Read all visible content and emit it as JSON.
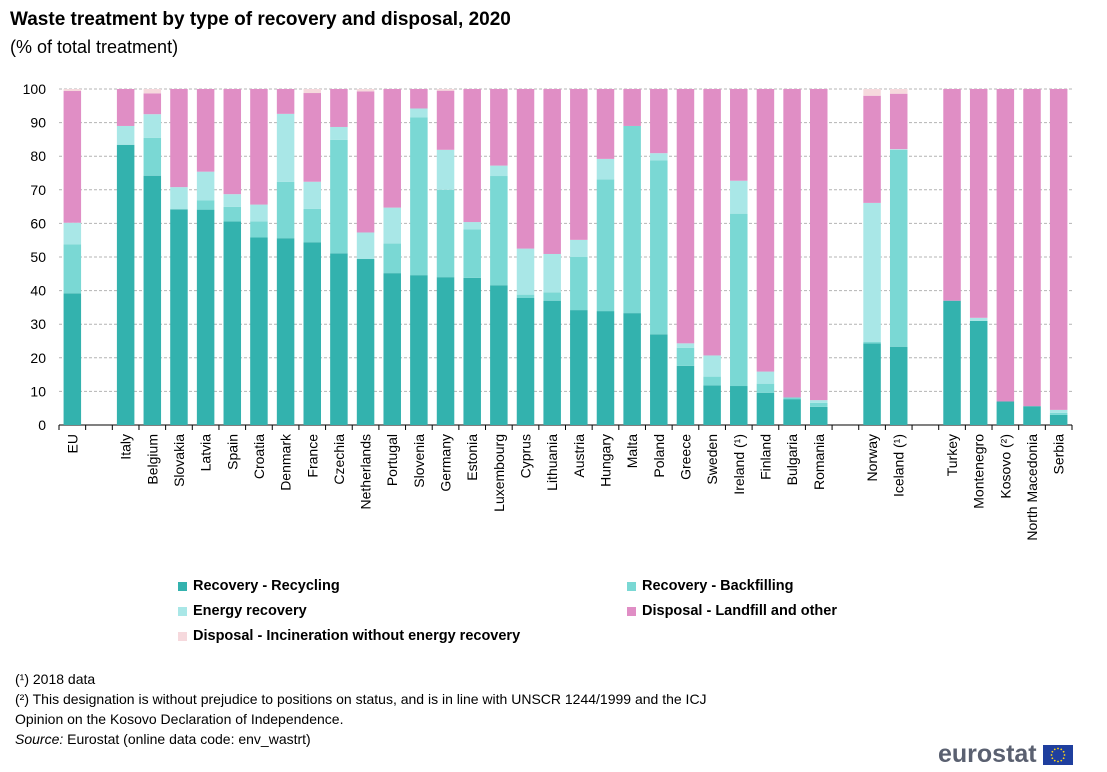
{
  "title": "Waste treatment by type of recovery and disposal, 2020",
  "subtitle": "(% of total treatment)",
  "legend": [
    {
      "label": "Recovery - Recycling",
      "color": "#33b2ae"
    },
    {
      "label": "Recovery - Backfilling",
      "color": "#7ad8d4"
    },
    {
      "label": "Energy recovery",
      "color": "#a9e7e7"
    },
    {
      "label": "Disposal - Landfill and other",
      "color": "#e08ec5"
    },
    {
      "label": "Disposal - Incineration without energy recovery",
      "color": "#f6d9dd"
    }
  ],
  "notes": {
    "note1": "(¹) 2018 data",
    "note2": "(²) This designation is without  prejudice to positions on status, and is in line with UNSCR 1244/1999 and the ICJ",
    "note3": "Opinion on the Kosovo Declaration of Independence.",
    "source_label": "Source:",
    "source_text": " Eurostat (online data code: env_wastrt)"
  },
  "logo": {
    "text": "eurostat",
    "flag": "EU flag"
  },
  "chart_data": {
    "type": "bar",
    "stacked": true,
    "ylim": [
      0,
      100
    ],
    "yticks": [
      0,
      10,
      20,
      30,
      40,
      50,
      60,
      70,
      80,
      90,
      100
    ],
    "grid": true,
    "legend_position": "bottom",
    "categories": [
      "EU",
      "",
      "Italy",
      "Belgium",
      "Slovakia",
      "Latvia",
      "Spain",
      "Croatia",
      "Denmark",
      "France",
      "Czechia",
      "Netherlands",
      "Portugal",
      "Slovenia",
      "Germany",
      "Estonia",
      "Luxembourg",
      "Cyprus",
      "Lithuania",
      "Austria",
      "Hungary",
      "Malta",
      "Poland",
      "Greece",
      "Sweden",
      "Ireland (¹)",
      "Finland",
      "Bulgaria",
      "Romania",
      "",
      "Norway",
      "Iceland (¹)",
      "",
      "Turkey",
      "Montenegro",
      "Kosovo  (²)",
      "North Macedonia",
      "Serbia"
    ],
    "series": [
      {
        "name": "Recovery - Recycling",
        "color": "#33b2ae",
        "values": [
          39.2,
          null,
          83.4,
          74.2,
          64.2,
          64.1,
          60.6,
          55.8,
          55.6,
          54.4,
          51.1,
          49.4,
          45.2,
          44.6,
          44.0,
          43.8,
          41.6,
          37.8,
          37.0,
          34.2,
          33.9,
          33.3,
          27.0,
          17.6,
          11.8,
          11.6,
          9.6,
          7.7,
          5.4,
          null,
          24.3,
          23.3,
          null,
          37.0,
          31.0,
          7.0,
          5.6,
          3.0
        ]
      },
      {
        "name": "Recovery - Backfilling",
        "color": "#7ad8d4",
        "values": [
          14.6,
          null,
          0.0,
          11.3,
          0.0,
          2.8,
          4.3,
          4.8,
          16.8,
          9.9,
          33.8,
          0.0,
          8.8,
          47.0,
          26.0,
          14.4,
          32.5,
          1.0,
          2.5,
          15.8,
          39.2,
          55.7,
          51.8,
          5.4,
          2.6,
          51.3,
          2.7,
          0.5,
          1.2,
          null,
          0.4,
          58.6,
          null,
          0.0,
          0.0,
          0.0,
          0.0,
          0.6
        ]
      },
      {
        "name": "Energy recovery",
        "color": "#a9e7e7",
        "values": [
          6.4,
          null,
          5.6,
          7.0,
          6.6,
          8.5,
          3.8,
          5.0,
          20.2,
          8.1,
          3.8,
          7.9,
          10.7,
          2.6,
          11.9,
          2.2,
          3.1,
          13.7,
          11.4,
          5.1,
          6.1,
          0.0,
          2.1,
          1.3,
          6.3,
          9.8,
          3.6,
          0.0,
          0.8,
          null,
          41.4,
          0.2,
          null,
          0.0,
          0.9,
          0.0,
          0.0,
          0.9
        ]
      },
      {
        "name": "Disposal - Landfill and other",
        "color": "#e08ec5",
        "values": [
          39.2,
          null,
          11.0,
          6.2,
          29.2,
          24.6,
          31.3,
          34.4,
          7.4,
          26.4,
          11.3,
          42.0,
          35.3,
          5.8,
          17.6,
          39.6,
          22.8,
          47.5,
          49.1,
          44.9,
          20.8,
          11.0,
          19.1,
          75.7,
          79.3,
          27.3,
          84.1,
          91.8,
          92.6,
          null,
          31.9,
          16.5,
          null,
          63.0,
          68.1,
          93.0,
          94.4,
          95.5
        ]
      },
      {
        "name": "Disposal - Incineration without energy recovery",
        "color": "#f6d9dd",
        "values": [
          0.6,
          null,
          0.0,
          1.3,
          0.0,
          0.0,
          0.0,
          0.0,
          0.0,
          1.2,
          0.0,
          0.7,
          0.0,
          0.0,
          0.5,
          0.0,
          0.0,
          0.0,
          0.0,
          0.0,
          0.0,
          0.0,
          0.0,
          0.0,
          0.0,
          0.0,
          0.0,
          0.0,
          0.0,
          null,
          2.0,
          1.4,
          null,
          0.0,
          0.0,
          0.0,
          0.0,
          0.0
        ]
      }
    ]
  }
}
